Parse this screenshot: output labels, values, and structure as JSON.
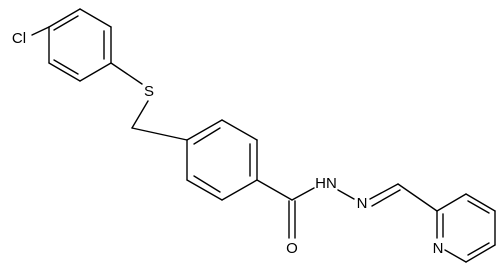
{
  "atoms": [
    "Cl",
    "S",
    "O",
    "HN",
    "N",
    "N"
  ]
}
